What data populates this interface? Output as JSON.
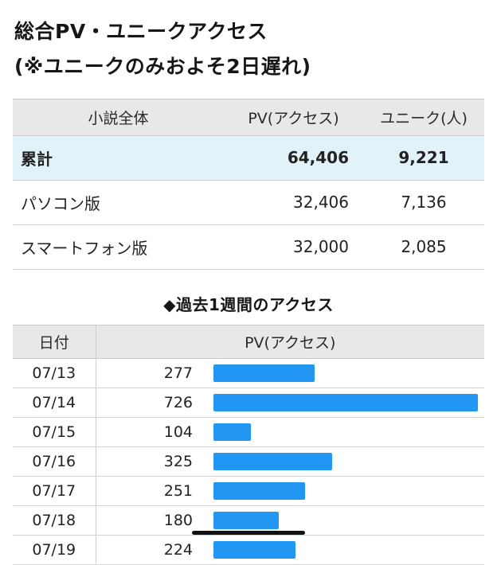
{
  "page": {
    "title_line1": "総合PV・ユニークアクセス",
    "title_line2": "(※ユニークのみおよそ2日遅れ)"
  },
  "summary_table": {
    "col_headers": [
      "小説全体",
      "PV(アクセス)",
      "ユニーク(人)"
    ],
    "rows": [
      {
        "label": "累計",
        "pv": "64,406",
        "unique": "9,221"
      },
      {
        "label": "パソコン版",
        "pv": "32,406",
        "unique": "7,136"
      },
      {
        "label": "スマートフォン版",
        "pv": "32,000",
        "unique": "2,085"
      }
    ]
  },
  "weekly": {
    "section_title": "◆過去1週間のアクセス",
    "col_headers": [
      "日付",
      "PV(アクセス)"
    ]
  },
  "chart_data": {
    "type": "bar",
    "orientation": "horizontal",
    "title": "◆過去1週間のアクセス",
    "categories": [
      "07/13",
      "07/14",
      "07/15",
      "07/16",
      "07/17",
      "07/18",
      "07/19"
    ],
    "values": [
      277,
      726,
      104,
      325,
      251,
      180,
      224
    ],
    "xlabel": "PV(アクセス)",
    "ylabel": "日付",
    "xlim": [
      0,
      726
    ],
    "grid": false,
    "legend": false
  },
  "colors": {
    "bar": "#2196f3",
    "header_bg": "#e8e8e8",
    "highlight_row_bg": "#e1f3f9",
    "border": "#c9c9c9"
  }
}
